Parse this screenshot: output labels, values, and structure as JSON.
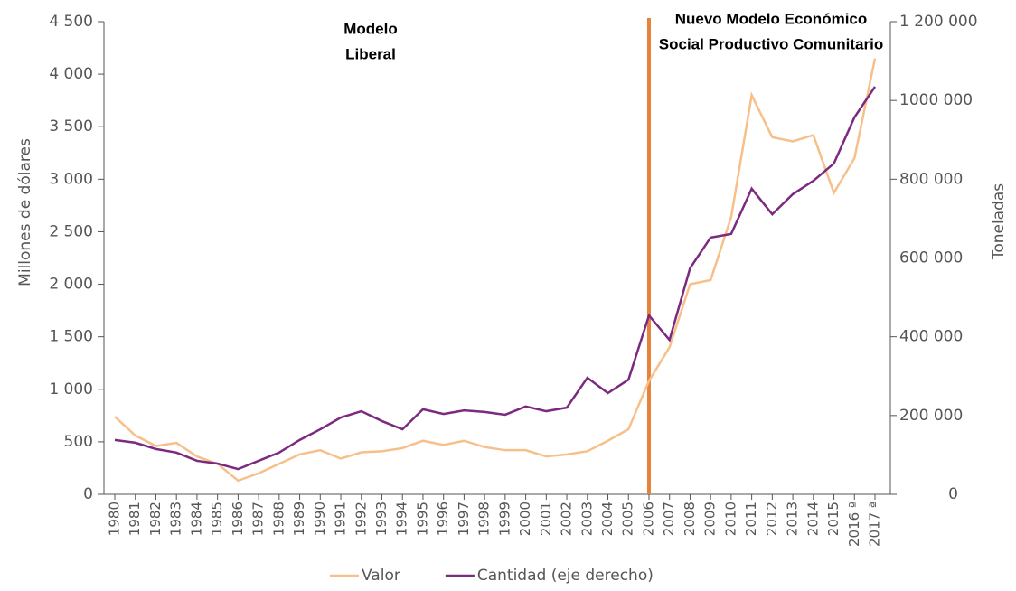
{
  "chart_data": {
    "type": "line",
    "y_label": "Millones de dólares",
    "y2_label": "Toneladas",
    "categories": [
      "1980",
      "1981",
      "1982",
      "1983",
      "1984",
      "1985",
      "1986",
      "1987",
      "1988",
      "1989",
      "1990",
      "1991",
      "1992",
      "1993",
      "1994",
      "1995",
      "1996",
      "1997",
      "1998",
      "1999",
      "2000",
      "2001",
      "2002",
      "2003",
      "2004",
      "2005",
      "2006",
      "2007",
      "2008",
      "2009",
      "2010",
      "2011",
      "2012",
      "2013",
      "2014",
      "2015",
      "2016 ª",
      "2017 ª"
    ],
    "series": [
      {
        "name": "Valor",
        "color": "#f7c08a",
        "values": [
          740,
          560,
          460,
          490,
          360,
          290,
          130,
          200,
          290,
          380,
          420,
          340,
          400,
          410,
          440,
          510,
          470,
          510,
          450,
          420,
          420,
          360,
          380,
          410,
          510,
          620,
          1080,
          1400,
          2000,
          2040,
          2640,
          3800,
          3400,
          3360,
          3420,
          2870,
          3200,
          4150
        ]
      },
      {
        "name": "Cantidad (eje derecho)",
        "color": "#7b2a7f",
        "axis": "y2",
        "values": [
          138000,
          131000,
          115000,
          106000,
          85000,
          78000,
          64000,
          85000,
          106000,
          138000,
          165000,
          195000,
          211000,
          186000,
          165000,
          216000,
          204000,
          213000,
          209000,
          202000,
          223000,
          211000,
          220000,
          296000,
          257000,
          291000,
          454000,
          392000,
          574000,
          652000,
          661000,
          776000,
          711000,
          762000,
          796000,
          840000,
          957000,
          1035000
        ]
      }
    ],
    "ylim": [
      0,
      4500
    ],
    "yticks": [
      0,
      500,
      {
        "value": 1000,
        "label": "1 000"
      },
      {
        "value": 1500,
        "label": "1 500"
      },
      {
        "value": 2000,
        "label": "2 000"
      },
      {
        "value": 2500,
        "label": "2 500"
      },
      {
        "value": 3000,
        "label": "3 000"
      },
      {
        "value": 3500,
        "label": "3 500"
      },
      {
        "value": 4000,
        "label": "4 000"
      },
      {
        "value": 4500,
        "label": "4 500"
      }
    ],
    "y2lim": [
      0,
      1200000
    ],
    "y2ticks": [
      0,
      {
        "value": 200000,
        "label": "200 000"
      },
      {
        "value": 400000,
        "label": "400 000"
      },
      {
        "value": 600000,
        "label": "600 000"
      },
      {
        "value": 800000,
        "label": "800 000"
      },
      {
        "value": 1000000,
        "label": "1000 000"
      },
      {
        "value": 1200000,
        "label": "1 200 000"
      }
    ],
    "divider_category": "2006",
    "divider_color": "#e8823a",
    "annotations": [
      {
        "lines": [
          "Modelo",
          "Liberal"
        ]
      },
      {
        "lines": [
          "Nuevo Modelo Económico",
          "Social Productivo Comunitario"
        ]
      }
    ],
    "legend": "bottom"
  }
}
